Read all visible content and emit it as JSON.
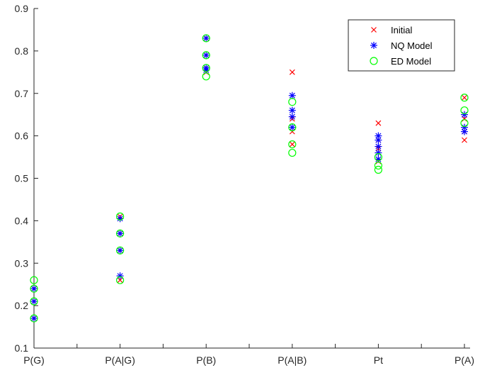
{
  "chart_data": {
    "type": "scatter",
    "categories": [
      "P(G)",
      "P(A|G)",
      "P(B)",
      "P(A|B)",
      "Pt",
      "P(A)"
    ],
    "ylim": [
      0.1,
      0.9
    ],
    "yticks": [
      "0.1",
      "0.2",
      "0.3",
      "0.4",
      "0.5",
      "0.6",
      "0.7",
      "0.8",
      "0.9"
    ],
    "grid": false,
    "legend_position": "top-right",
    "series": [
      {
        "name": "Initial",
        "marker": "x",
        "color": "#ff0000",
        "points": [
          [
            "P(G)",
            0.24
          ],
          [
            "P(G)",
            0.21
          ],
          [
            "P(G)",
            0.17
          ],
          [
            "P(A|G)",
            0.41
          ],
          [
            "P(A|G)",
            0.37
          ],
          [
            "P(A|G)",
            0.33
          ],
          [
            "P(A|G)",
            0.26
          ],
          [
            "P(B)",
            0.83
          ],
          [
            "P(B)",
            0.79
          ],
          [
            "P(B)",
            0.76
          ],
          [
            "P(B)",
            0.75
          ],
          [
            "P(A|B)",
            0.75
          ],
          [
            "P(A|B)",
            0.64
          ],
          [
            "P(A|B)",
            0.61
          ],
          [
            "P(A|B)",
            0.58
          ],
          [
            "Pt",
            0.63
          ],
          [
            "Pt",
            0.59
          ],
          [
            "Pt",
            0.57
          ],
          [
            "Pt",
            0.54
          ],
          [
            "P(A)",
            0.69
          ],
          [
            "P(A)",
            0.64
          ],
          [
            "P(A)",
            0.61
          ],
          [
            "P(A)",
            0.59
          ]
        ]
      },
      {
        "name": "NQ Model",
        "marker": "*",
        "color": "#0000ff",
        "points": [
          [
            "P(G)",
            0.24
          ],
          [
            "P(G)",
            0.21
          ],
          [
            "P(G)",
            0.17
          ],
          [
            "P(A|G)",
            0.405
          ],
          [
            "P(A|G)",
            0.37
          ],
          [
            "P(A|G)",
            0.33
          ],
          [
            "P(A|G)",
            0.27
          ],
          [
            "P(B)",
            0.83
          ],
          [
            "P(B)",
            0.79
          ],
          [
            "P(B)",
            0.76
          ],
          [
            "P(B)",
            0.755
          ],
          [
            "P(A|B)",
            0.695
          ],
          [
            "P(A|B)",
            0.66
          ],
          [
            "P(A|B)",
            0.645
          ],
          [
            "P(A|B)",
            0.62
          ],
          [
            "Pt",
            0.6
          ],
          [
            "Pt",
            0.59
          ],
          [
            "Pt",
            0.575
          ],
          [
            "Pt",
            0.56
          ],
          [
            "Pt",
            0.545
          ],
          [
            "P(A)",
            0.65
          ],
          [
            "P(A)",
            0.62
          ],
          [
            "P(A)",
            0.61
          ]
        ]
      },
      {
        "name": "ED Model",
        "marker": "o",
        "color": "#00ff00",
        "points": [
          [
            "P(G)",
            0.26
          ],
          [
            "P(G)",
            0.24
          ],
          [
            "P(G)",
            0.21
          ],
          [
            "P(G)",
            0.17
          ],
          [
            "P(A|G)",
            0.41
          ],
          [
            "P(A|G)",
            0.37
          ],
          [
            "P(A|G)",
            0.33
          ],
          [
            "P(A|G)",
            0.26
          ],
          [
            "P(B)",
            0.83
          ],
          [
            "P(B)",
            0.79
          ],
          [
            "P(B)",
            0.76
          ],
          [
            "P(B)",
            0.74
          ],
          [
            "P(A|B)",
            0.68
          ],
          [
            "P(A|B)",
            0.62
          ],
          [
            "P(A|B)",
            0.58
          ],
          [
            "P(A|B)",
            0.56
          ],
          [
            "Pt",
            0.55
          ],
          [
            "Pt",
            0.53
          ],
          [
            "Pt",
            0.52
          ],
          [
            "P(A)",
            0.69
          ],
          [
            "P(A)",
            0.66
          ],
          [
            "P(A)",
            0.63
          ]
        ]
      }
    ]
  }
}
